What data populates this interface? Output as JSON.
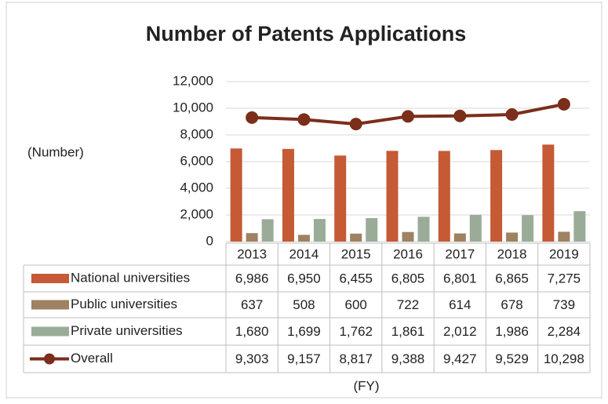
{
  "chart_data": {
    "type": "bar",
    "title": "Number of Patents Applications",
    "y_label": "(Number)",
    "x_label": "(FY)",
    "categories": [
      "2013",
      "2014",
      "2015",
      "2016",
      "2017",
      "2018",
      "2019"
    ],
    "series": [
      {
        "name": "National universities",
        "color": "#c55a35",
        "values": [
          6986,
          6950,
          6455,
          6805,
          6801,
          6865,
          7275
        ],
        "value_labels": [
          "6,986",
          "6,950",
          "6,455",
          "6,805",
          "6,801",
          "6,865",
          "7,275"
        ]
      },
      {
        "name": "Public universities",
        "color": "#9e8261",
        "values": [
          637,
          508,
          600,
          722,
          614,
          678,
          739
        ]
      },
      {
        "name": "Private universities",
        "color": "#9aac98",
        "values": [
          1680,
          1699,
          1762,
          1861,
          2012,
          1986,
          2284
        ],
        "value_labels": [
          "1,680",
          "1,699",
          "1,762",
          "1,861",
          "2,012",
          "1,986",
          "2,284"
        ]
      },
      {
        "name": "Overall",
        "type": "line",
        "color": "#7b2e1a",
        "values": [
          9303,
          9157,
          8817,
          9388,
          9427,
          9529,
          10298
        ],
        "value_labels": [
          "9,303",
          "9,157",
          "8,817",
          "9,388",
          "9,427",
          "9,529",
          "10,298"
        ]
      }
    ],
    "ylim": [
      0,
      12000
    ],
    "yticks": [
      0,
      {
        "value": 2000,
        "label": "2,000"
      },
      {
        "value": 4000,
        "label": "4,000"
      },
      {
        "value": 6000,
        "label": "6,000"
      },
      {
        "value": 8000,
        "label": "8,000"
      },
      {
        "value": 10000,
        "label": "10,000"
      },
      {
        "value": 12000,
        "label": "12,000"
      }
    ],
    "grid": true
  }
}
